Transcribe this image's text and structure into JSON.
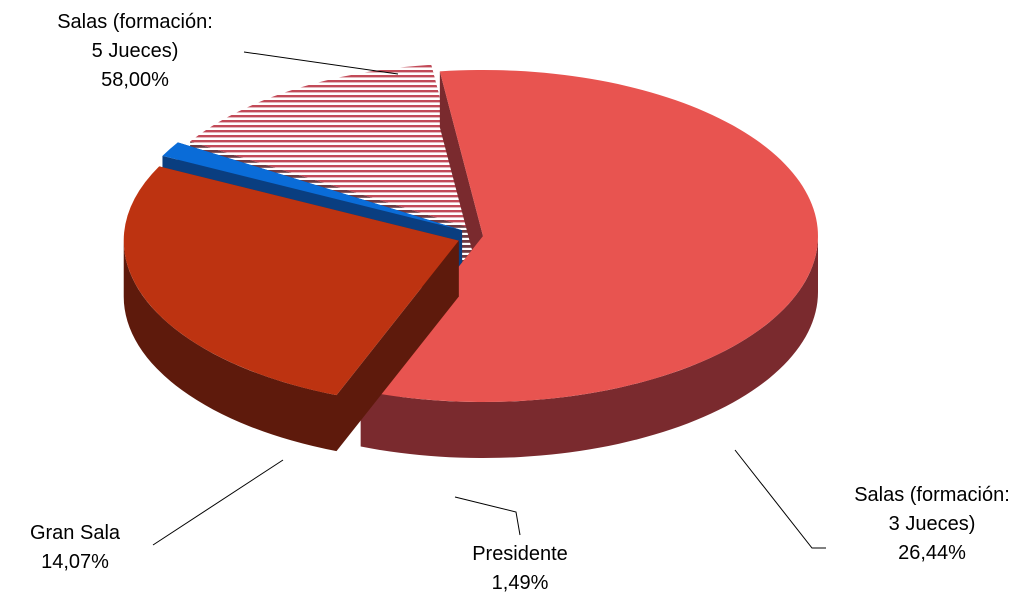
{
  "chart_data": {
    "type": "pie",
    "style": "3d-exploded",
    "title": "",
    "slices": [
      {
        "name": "Salas (formación: 5 Jueces)",
        "value": 58.0,
        "label_lines": [
          "Salas (formación:",
          "5 Jueces)",
          "58,00%"
        ],
        "color": "#E85450",
        "side_color": "#7A2A2E",
        "pattern": "solid"
      },
      {
        "name": "Salas (formación: 3 Jueces)",
        "value": 26.44,
        "label_lines": [
          "Salas (formación:",
          "3 Jueces)",
          "26,44%"
        ],
        "color": "#BD3311",
        "side_color": "#5E1A0C",
        "pattern": "solid"
      },
      {
        "name": "Presidente",
        "value": 1.49,
        "label_lines": [
          "Presidente",
          "1,49%"
        ],
        "color": "#0A6CD8",
        "side_color": "#0A3E80",
        "pattern": "solid"
      },
      {
        "name": "Gran Sala",
        "value": 14.07,
        "label_lines": [
          "Gran Sala",
          "14,07%"
        ],
        "color": "#F4C8CE",
        "side_color": "#7A4A50",
        "pattern": "horizontal-stripes"
      }
    ]
  }
}
